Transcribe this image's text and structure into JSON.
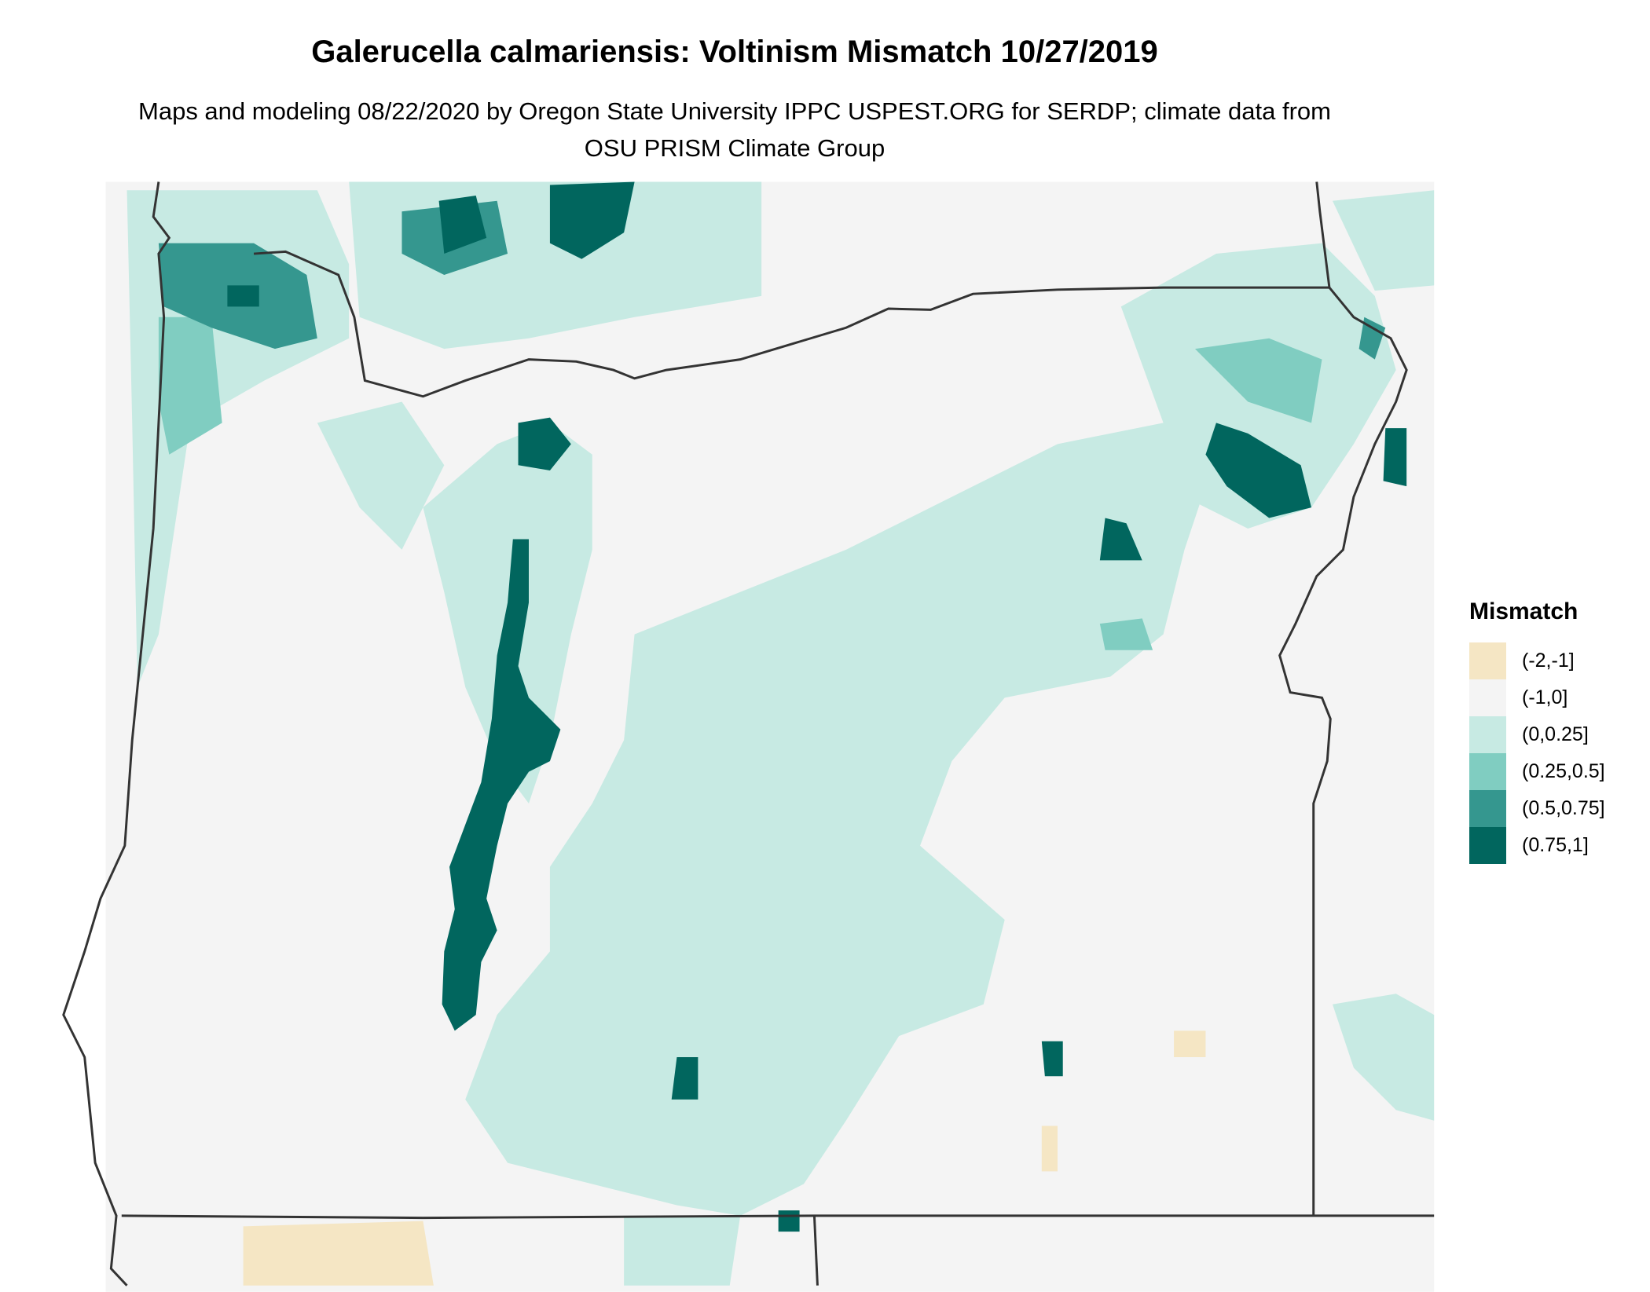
{
  "title": "Galerucella calmariensis: Voltinism Mismatch 10/27/2019",
  "subtitle": "Maps and modeling 08/22/2020 by Oregon State University IPPC USPEST.ORG for SERDP; climate data from OSU PRISM Climate Group",
  "legend": {
    "title": "Mismatch",
    "items": [
      {
        "label": "(-2,-1]",
        "color": "#f5e6c4"
      },
      {
        "label": "(-1,0]",
        "color": "#f4f4f4"
      },
      {
        "label": "(0,0.25]",
        "color": "#c7eae3"
      },
      {
        "label": "(0.25,0.5]",
        "color": "#80cdc1"
      },
      {
        "label": "(0.5,0.75]",
        "color": "#35978f"
      },
      {
        "label": "(0.75,1]",
        "color": "#01665e"
      }
    ]
  },
  "map": {
    "region": "Oregon and surrounding areas",
    "background_color": "#f4f4f4",
    "border_color": "#333333"
  }
}
